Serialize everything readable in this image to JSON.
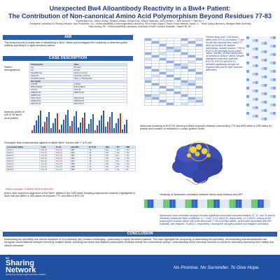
{
  "header": {
    "title_line1": "Unexpected Bw4 Alloantibody Reactivity in a Bw4+ Patient:",
    "title_line2": "The Contribution of Non-canonical Amino Acid Polymorphism Beyond Residues 77-83",
    "authors": "Hyunhyung Kim¹, Jaehyu Jeong¹, Bosana Lebaka², Donna King¹, Sharyn Sawczak¹, John Gerlach³,⁴, John Schmitz⁵,⁶, Sam Ho¹,²",
    "affiliations": "¹ Transplant Laboratory NJ Sharing Network, New Providence, NJ; ² Histocompatibility & Immunogenetics Laboratory, Gift of Hope Organ & Tissue Donor Network, Itasca, IL; ³ Texas Tyring Laboratory, Michigan State University, East Lansing, MI; ⁴ Histocompatibility Laboratory, University of North Carolina Hospitals, Chapel Hill, NC"
  },
  "aim": {
    "header": "AIM",
    "text": "This study presents a unique case of alloantibody to Bw4+ alleles and investigates the complexity of determining Bw4 antibody specificity in a highly sensitized patient."
  },
  "case": {
    "header": "CASE DESCRIPTION",
    "demographics_label": "Patient demographics",
    "table_headers": [
      "Characteristic",
      "Value"
    ],
    "rows": [
      [
        "Age",
        "60 years"
      ],
      [
        "Sex",
        "Female"
      ],
      [
        "Race/Ethnicity",
        "African American"
      ],
      [
        "Diagnosis",
        "Nephrotic syndrome"
      ],
      [
        "Sensitizing Event",
        "History of Multigravida"
      ]
    ],
    "hla_label": "HLA typing",
    "hla_rows": [
      [
        "A*02:05",
        "A*30:02"
      ],
      [
        "B*53:01(Bw4)",
        "B*44:15(Bw4)"
      ],
      [
        "C*07:01",
        "C*07:18"
      ],
      [
        "DRB1*15:03",
        "DRB1*03:02"
      ],
      [
        "DRB3*01:01",
        ""
      ],
      [
        "DQA1*01:02",
        "DQA1*04:01"
      ],
      [
        "DQB1*06:02",
        "DQB1*04:02"
      ],
      [
        "DPA1*01:03",
        "DPA1*02:01"
      ],
      [
        "DPB1*01:01",
        "DPB1*04:01"
      ]
    ],
    "antibody_label": "Antibody profile of a B*47:63 Bw4+ renal patient"
  },
  "right_text": "Present study used 1,100 donors differs from 6*47:01 at residues 77 and 80 with the canonical Bw4 motif (T77-N80) but not Bw4 80 residues. Interestingly, variable residues 77/80 of B*47:01 are generally found in Bw6+ alleles, whereas 3/5 Bw6 alleles were not present in all Bw4+ alleles. Despite sharing the exact Bw4 motif with B*47:01, B*57:03 and B*57:01 exhibited significantly stronger Ab reactivity likely due to other structural differences.",
  "molecular_caption": "Molecular modeling of B*47:63 showing surface-exposed residues surrounding 77S and 80N within a 15Å radius (in yellow) and location of residues in α-chain (yellow circle).",
  "surrogate": {
    "caption": "Surrogate flow crossmatches against multiple Bw4+ donors with T & B cell",
    "headers": [
      "Crossmatch (DSA)",
      "T cell",
      "B cell",
      "Bw4 MFI",
      "B*47:63",
      "Bw4",
      "T77",
      "80N"
    ],
    "rows": [
      [
        "Donor 1",
        "Pos (4)",
        "Pos (5)",
        "B51",
        "20",
        "Yes",
        "Yes",
        "Yes"
      ],
      [
        "Donor 2",
        "Pos (1)",
        "Pos (2)",
        "B13",
        "24",
        "Yes",
        "Yes",
        "Yes"
      ],
      [
        "Donor 3",
        "Neg (0)",
        "Pos (3)",
        "B57",
        "19",
        "Yes",
        "No",
        "Yes"
      ],
      [
        "Donor 4",
        "Pos (2)",
        "Pos (4)",
        "B44",
        "25",
        "Yes",
        "Yes",
        "Yes"
      ],
      [
        "Donor 5",
        "Pos (3)",
        "Pos (3)",
        "B27",
        "18",
        "Yes",
        "No",
        "Yes"
      ],
      [
        "Donor 6",
        "Neg (0)",
        "Neg (0)",
        "B53",
        "11",
        "Yes",
        "Yes",
        "Yes"
      ],
      [
        "Donor 7",
        "Pos (1)",
        "Pos (2)",
        "B38",
        "22",
        "Yes",
        "No",
        "Yes"
      ],
      [
        "Donor 8",
        "Neg (0)",
        "Neg (0)",
        "B49",
        "14",
        "Yes",
        "Yes",
        "No"
      ]
    ],
    "footnote": "Positive crossmatch: T cell MCS ≥36; B cell MCS ≥103"
  },
  "amino_caption": "Amino acid sequence alignment of the Bw4+ alleles in the SAB panel showing polymorphic residues (highlighted in blue) that are within a 15Å radius of residues 77S and 80N of B*47:03",
  "heatmap_caption": "Heatmap of Spearman correlation between amino acid residues and MFI",
  "spearman_text": "Spearman's rank correlation analysis revealed significant association between residues 11, 12, and 74 and Ab reactivity (Spearman Rank Coefficient, rs = -0.49, -0.53, and 0.52, respectively; p ≤ 0.0001). Among all the polymorphic residues within 15Å of the Bw4 motif 77-83 of all Bw4 alleles, seven were associated with MFI variability, with residues 74 and 12, respectively, showing the strongest positive and negative correlation.",
  "conclusion": {
    "header": "CONCLUSION",
    "text": "Determining the specificity and clinical relevance of HLA antibody (Ab) remains challenging—particularly in highly sensitized patients. This case highlights the complexity of determining Bw specificity, demonstrating that alloantibodies can recognize conformational epitopes formed by multiple eplets, including non-linear and adjacent polymorphic residues outside the conventional epitope. Understanding these structural nuances is crucial for accurately assessing their validity and clinical relevance."
  },
  "footer": {
    "org_small": "NJ",
    "org_line1": "Sharing",
    "org_line2": "Network",
    "org_sub": "saving lives through organ and tissue donation",
    "tagline": "No Promise. No Surrender. To Give Hope."
  },
  "colors": {
    "primary": "#1f4fa0",
    "section": "#2d5fa8",
    "heat_pos": "#3366cc",
    "heat_neg": "#66cc66",
    "protein": "#3b4bb0",
    "highlight": "#f2d23c"
  }
}
